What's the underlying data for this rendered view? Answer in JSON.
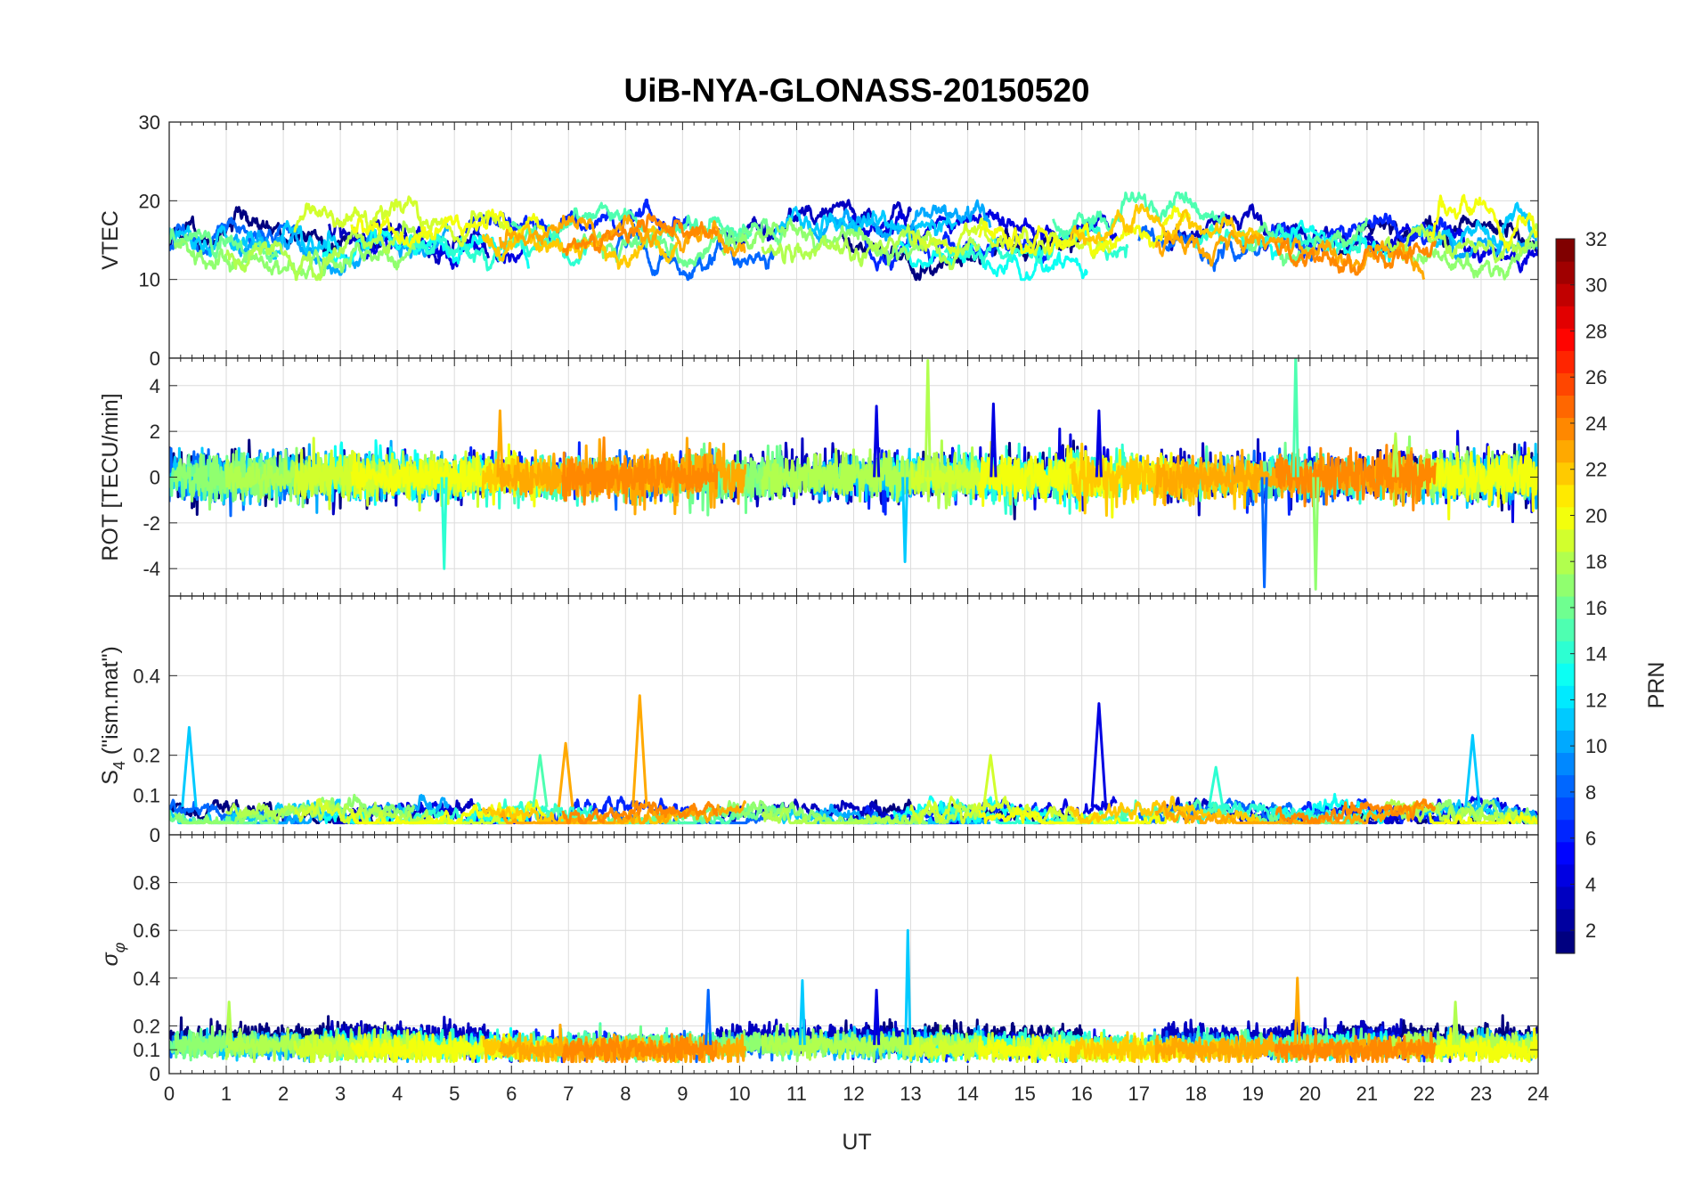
{
  "chart_data": {
    "type": "line",
    "title": "UiB-NYA-GLONASS-20150520",
    "x_axis": {
      "label": "UT",
      "range": [
        0,
        24
      ],
      "ticks": [
        "0",
        "1",
        "2",
        "3",
        "4",
        "5",
        "6",
        "7",
        "8",
        "9",
        "10",
        "11",
        "12",
        "13",
        "14",
        "15",
        "16",
        "17",
        "18",
        "19",
        "20",
        "21",
        "22",
        "23",
        "24"
      ]
    },
    "grid": true,
    "panels": [
      {
        "id": "vtec",
        "ylabel": "VTEC",
        "ylim": [
          0,
          30
        ],
        "yticks": [
          0,
          10,
          20,
          30
        ],
        "ytick_labels": [
          "0",
          "10",
          "20",
          "30"
        ],
        "typical_range": [
          10,
          21
        ],
        "spikes": []
      },
      {
        "id": "rot",
        "ylabel": "ROT [TECU/min]",
        "ylim": [
          -5.2,
          5.2
        ],
        "yticks": [
          -4,
          -2,
          0,
          2,
          4
        ],
        "ytick_labels": [
          "-4",
          "-2",
          "0",
          "2",
          "4"
        ],
        "typical_range": [
          -1.2,
          1.2
        ],
        "spikes": [
          {
            "x": 4.82,
            "y": -4.0,
            "prn": 14
          },
          {
            "x": 5.8,
            "y": 2.9,
            "prn": 23
          },
          {
            "x": 12.4,
            "y": 3.1,
            "prn": 4
          },
          {
            "x": 12.9,
            "y": -3.7,
            "prn": 11
          },
          {
            "x": 13.3,
            "y": 5.1,
            "prn": 18
          },
          {
            "x": 14.45,
            "y": 3.2,
            "prn": 4
          },
          {
            "x": 16.3,
            "y": 2.9,
            "prn": 4
          },
          {
            "x": 19.2,
            "y": -4.8,
            "prn": 8
          },
          {
            "x": 19.75,
            "y": 5.4,
            "prn": 15
          },
          {
            "x": 20.1,
            "y": -4.9,
            "prn": 17
          },
          {
            "x": 21.5,
            "y": 1.9,
            "prn": 18
          }
        ]
      },
      {
        "id": "s4",
        "ylabel_prefix": "S",
        "ylabel_sub": "4",
        "ylabel_suffix": " (\"ism.mat\")",
        "ylim": [
          0,
          0.6
        ],
        "yticks": [
          0,
          0.1,
          0.2,
          0.4
        ],
        "ytick_labels": [
          "0",
          "0.1",
          "0.2",
          "0.4"
        ],
        "typical_range": [
          0.04,
          0.1
        ],
        "spikes": [
          {
            "x": 0.35,
            "y": 0.27,
            "prn": 11
          },
          {
            "x": 6.5,
            "y": 0.2,
            "prn": 15
          },
          {
            "x": 6.95,
            "y": 0.23,
            "prn": 23
          },
          {
            "x": 8.25,
            "y": 0.35,
            "prn": 23
          },
          {
            "x": 14.4,
            "y": 0.2,
            "prn": 19
          },
          {
            "x": 16.3,
            "y": 0.33,
            "prn": 4
          },
          {
            "x": 18.35,
            "y": 0.17,
            "prn": 14
          },
          {
            "x": 22.85,
            "y": 0.25,
            "prn": 11
          }
        ]
      },
      {
        "id": "sigma_phi",
        "ylabel_prefix": "σ",
        "ylabel_sub": "φ",
        "ylim": [
          0,
          1
        ],
        "yticks": [
          0,
          0.1,
          0.2,
          0.4,
          0.6,
          0.8
        ],
        "ytick_labels": [
          "0",
          "0.1",
          "0.2",
          "0.4",
          "0.6",
          "0.8"
        ],
        "typical_range": [
          0.06,
          0.2
        ],
        "spikes": [
          {
            "x": 1.05,
            "y": 0.3,
            "prn": 18
          },
          {
            "x": 9.45,
            "y": 0.35,
            "prn": 8
          },
          {
            "x": 11.1,
            "y": 0.39,
            "prn": 11
          },
          {
            "x": 12.4,
            "y": 0.35,
            "prn": 4
          },
          {
            "x": 12.95,
            "y": 0.6,
            "prn": 11
          },
          {
            "x": 19.78,
            "y": 0.4,
            "prn": 23
          },
          {
            "x": 22.55,
            "y": 0.3,
            "prn": 18
          }
        ]
      }
    ],
    "series": [
      {
        "prn": 1,
        "segments": [
          [
            0.0,
            3.9
          ],
          [
            11.8,
            16.0
          ],
          [
            20.5,
            24.0
          ]
        ],
        "vtec_level": 14.5
      },
      {
        "prn": 3,
        "segments": [
          [
            2.8,
            5.6
          ],
          [
            9.6,
            13.0
          ],
          [
            17.4,
            21.6
          ]
        ],
        "vtec_level": 16.0
      },
      {
        "prn": 4,
        "segments": [
          [
            3.3,
            6.2
          ],
          [
            11.9,
            16.6
          ],
          [
            21.0,
            24.0
          ]
        ],
        "vtec_level": 15.5
      },
      {
        "prn": 6,
        "segments": [
          [
            5.2,
            9.1
          ],
          [
            12.2,
            15.4
          ],
          [
            18.8,
            22.4
          ]
        ],
        "vtec_level": 15.0
      },
      {
        "prn": 8,
        "segments": [
          [
            0.0,
            2.3
          ],
          [
            7.8,
            10.6
          ],
          [
            17.0,
            20.5
          ]
        ],
        "vtec_level": 14.0
      },
      {
        "prn": 10,
        "segments": [
          [
            1.1,
            4.9
          ],
          [
            11.3,
            14.4
          ],
          [
            22.4,
            24.0
          ]
        ],
        "vtec_level": 15.5
      },
      {
        "prn": 11,
        "segments": [
          [
            0.0,
            3.0
          ],
          [
            10.6,
            13.8
          ],
          [
            21.8,
            24.0
          ]
        ],
        "vtec_level": 16.0
      },
      {
        "prn": 13,
        "segments": [
          [
            2.7,
            6.3
          ],
          [
            12.7,
            16.1
          ],
          [
            19.3,
            21.4
          ]
        ],
        "vtec_level": 13.5
      },
      {
        "prn": 14,
        "segments": [
          [
            4.1,
            7.4
          ],
          [
            13.6,
            16.8
          ],
          [
            18.0,
            20.9
          ]
        ],
        "vtec_level": 14.0
      },
      {
        "prn": 15,
        "segments": [
          [
            6.0,
            10.2
          ],
          [
            15.5,
            18.6
          ]
        ],
        "vtec_level": 17.5
      },
      {
        "prn": 16,
        "segments": [
          [
            0.0,
            1.9
          ],
          [
            7.1,
            10.8
          ],
          [
            18.8,
            21.0
          ]
        ],
        "vtec_level": 15.0
      },
      {
        "prn": 17,
        "segments": [
          [
            0.1,
            4.3
          ],
          [
            9.7,
            13.3
          ],
          [
            21.6,
            24.0
          ]
        ],
        "vtec_level": 13.5
      },
      {
        "prn": 18,
        "segments": [
          [
            1.0,
            4.6
          ],
          [
            10.4,
            14.2
          ],
          [
            21.3,
            24.0
          ]
        ],
        "vtec_level": 14.0
      },
      {
        "prn": 19,
        "segments": [
          [
            2.2,
            6.0
          ],
          [
            13.0,
            16.5
          ]
        ],
        "vtec_level": 16.0
      },
      {
        "prn": 20,
        "segments": [
          [
            3.2,
            6.6
          ],
          [
            14.2,
            17.9
          ],
          [
            22.1,
            24.0
          ]
        ],
        "vtec_level": 16.0
      },
      {
        "prn": 22,
        "segments": [
          [
            5.5,
            8.9
          ],
          [
            15.8,
            19.1
          ]
        ],
        "vtec_level": 15.0
      },
      {
        "prn": 23,
        "segments": [
          [
            5.8,
            10.1
          ],
          [
            17.3,
            22.0
          ]
        ],
        "vtec_level": 15.0
      },
      {
        "prn": 24,
        "segments": [
          [
            6.9,
            9.6
          ],
          [
            19.4,
            22.2
          ]
        ],
        "vtec_level": 14.5
      }
    ],
    "colorbar": {
      "label": "PRN",
      "range": [
        1,
        32
      ],
      "ticks": [
        "2",
        "4",
        "6",
        "8",
        "10",
        "12",
        "14",
        "16",
        "18",
        "20",
        "22",
        "24",
        "26",
        "28",
        "30",
        "32"
      ],
      "colormap": "jet",
      "levels": 32
    }
  }
}
